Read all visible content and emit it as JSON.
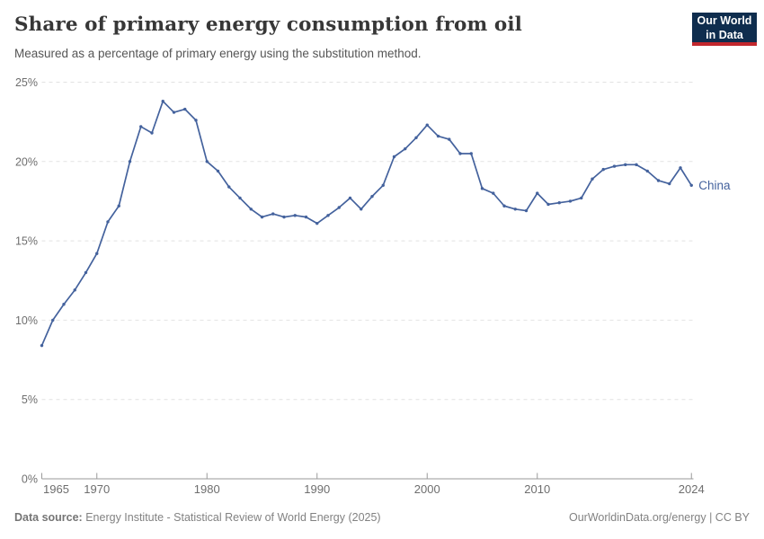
{
  "header": {
    "title": "Share of primary energy consumption from oil",
    "subtitle": "Measured as a percentage of primary energy using the substitution method.",
    "logo_line1": "Our World",
    "logo_line2": "in Data"
  },
  "footer": {
    "data_source_label": "Data source:",
    "data_source_value": " Energy Institute - Statistical Review of World Energy (2025)",
    "right_text": "OurWorldinData.org/energy | CC BY"
  },
  "colors": {
    "line": "#44629d",
    "entity_label": "#44629d",
    "gridline": "#e2e2e2",
    "axis": "#9a9a9a",
    "tick_label": "#6e6e6e",
    "logo_bg": "#0f2d4e",
    "logo_red": "#c2272d"
  },
  "chart_data": {
    "type": "line",
    "title": "Share of primary energy consumption from oil",
    "subtitle": "Measured as a percentage of primary energy using the substitution method.",
    "entity_label": "China",
    "ylim": [
      0,
      25
    ],
    "xlim": [
      1965,
      2024
    ],
    "grid": "horizontal-dashed",
    "legend_position": "end-of-line-label",
    "y_ticks": [
      {
        "value": 0,
        "label": "0%"
      },
      {
        "value": 5,
        "label": "5%"
      },
      {
        "value": 10,
        "label": "10%"
      },
      {
        "value": 15,
        "label": "15%"
      },
      {
        "value": 20,
        "label": "20%"
      },
      {
        "value": 25,
        "label": "25%"
      }
    ],
    "x_ticks": [
      {
        "year": 1965,
        "label": "1965"
      },
      {
        "year": 1970,
        "label": "1970"
      },
      {
        "year": 1980,
        "label": "1980"
      },
      {
        "year": 1990,
        "label": "1990"
      },
      {
        "year": 2000,
        "label": "2000"
      },
      {
        "year": 2010,
        "label": "2010"
      },
      {
        "year": 2024,
        "label": "2024"
      }
    ],
    "series": [
      {
        "name": "China",
        "years": [
          1965,
          1966,
          1967,
          1968,
          1969,
          1970,
          1971,
          1972,
          1973,
          1974,
          1975,
          1976,
          1977,
          1978,
          1979,
          1980,
          1981,
          1982,
          1983,
          1984,
          1985,
          1986,
          1987,
          1988,
          1989,
          1990,
          1991,
          1992,
          1993,
          1994,
          1995,
          1996,
          1997,
          1998,
          1999,
          2000,
          2001,
          2002,
          2003,
          2004,
          2005,
          2006,
          2007,
          2008,
          2009,
          2010,
          2011,
          2012,
          2013,
          2014,
          2015,
          2016,
          2017,
          2018,
          2019,
          2020,
          2021,
          2022,
          2023,
          2024
        ],
        "values": [
          8.4,
          10.0,
          11.0,
          11.9,
          13.0,
          14.2,
          16.2,
          17.2,
          20.0,
          22.2,
          21.8,
          23.8,
          23.1,
          23.3,
          22.6,
          20.0,
          19.4,
          18.4,
          17.7,
          17.0,
          16.5,
          16.7,
          16.5,
          16.6,
          16.5,
          16.1,
          16.6,
          17.1,
          17.7,
          17.0,
          17.8,
          18.5,
          20.3,
          20.8,
          21.5,
          22.3,
          21.6,
          21.4,
          20.5,
          20.5,
          18.3,
          18.0,
          17.2,
          17.0,
          16.9,
          18.0,
          17.3,
          17.4,
          17.5,
          17.7,
          18.9,
          19.5,
          19.7,
          19.8,
          19.8,
          19.4,
          18.8,
          18.6,
          19.6,
          18.5
        ]
      }
    ]
  }
}
